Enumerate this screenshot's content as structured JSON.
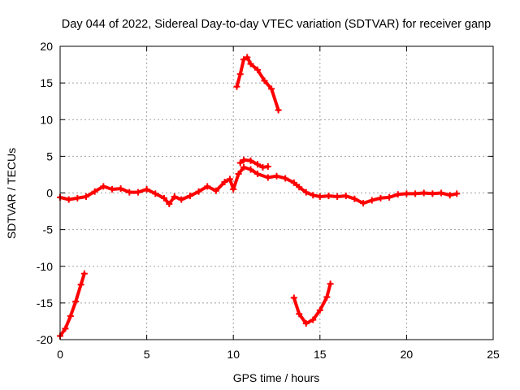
{
  "chart_data": {
    "type": "line",
    "title": "Day 044 of 2022, Sidereal Day-to-day VTEC variation (SDTVAR) for receiver ganp",
    "xlabel": "GPS time / hours",
    "ylabel": "SDTVAR / TECUs",
    "xlim": [
      0,
      25
    ],
    "ylim": [
      -20,
      20
    ],
    "xticks": [
      0,
      5,
      10,
      15,
      20,
      25
    ],
    "yticks": [
      -20,
      -15,
      -10,
      -5,
      0,
      5,
      10,
      15,
      20
    ],
    "grid": true,
    "marker": "plus",
    "color": "#ff0000",
    "series": [
      {
        "name": "main-track",
        "points": [
          [
            0,
            -0.6
          ],
          [
            0.5,
            -0.9
          ],
          [
            1.0,
            -0.7
          ],
          [
            1.5,
            -0.5
          ],
          [
            2.0,
            0.2
          ],
          [
            2.5,
            0.9
          ],
          [
            3.0,
            0.5
          ],
          [
            3.5,
            0.6
          ],
          [
            4.0,
            0.1
          ],
          [
            4.5,
            0.1
          ],
          [
            5.0,
            0.5
          ],
          [
            5.5,
            -0.1
          ],
          [
            6.0,
            -0.7
          ],
          [
            6.3,
            -1.5
          ],
          [
            6.6,
            -0.5
          ],
          [
            7.0,
            -0.9
          ],
          [
            7.5,
            -0.4
          ],
          [
            8.0,
            0.2
          ],
          [
            8.5,
            0.9
          ],
          [
            9.0,
            0.3
          ],
          [
            9.5,
            1.5
          ],
          [
            9.8,
            1.9
          ],
          [
            10.0,
            0.5
          ],
          [
            10.3,
            2.6
          ],
          [
            10.6,
            3.5
          ],
          [
            11.0,
            3.2
          ],
          [
            11.4,
            2.6
          ],
          [
            12.0,
            2.1
          ],
          [
            12.5,
            2.3
          ],
          [
            13.0,
            2.0
          ],
          [
            13.5,
            1.4
          ],
          [
            13.8,
            0.8
          ],
          [
            14.2,
            0.1
          ],
          [
            14.6,
            -0.3
          ],
          [
            15.0,
            -0.5
          ],
          [
            15.5,
            -0.4
          ],
          [
            16.0,
            -0.5
          ],
          [
            16.5,
            -0.4
          ],
          [
            17.0,
            -0.8
          ],
          [
            17.5,
            -1.4
          ],
          [
            18.0,
            -1.0
          ],
          [
            18.5,
            -0.7
          ],
          [
            19.0,
            -0.6
          ],
          [
            19.5,
            -0.2
          ],
          [
            20.0,
            -0.1
          ],
          [
            20.5,
            -0.1
          ],
          [
            21.0,
            0.0
          ],
          [
            21.5,
            -0.1
          ],
          [
            22.0,
            0.0
          ],
          [
            22.5,
            -0.3
          ],
          [
            22.9,
            -0.1
          ]
        ]
      },
      {
        "name": "upper-branch",
        "points": [
          [
            10.4,
            4.1
          ],
          [
            10.6,
            4.5
          ],
          [
            11.0,
            4.4
          ],
          [
            11.4,
            3.9
          ],
          [
            11.7,
            3.5
          ],
          [
            12.0,
            3.6
          ]
        ]
      },
      {
        "name": "spike-high",
        "points": [
          [
            10.2,
            14.5
          ],
          [
            10.4,
            16.2
          ],
          [
            10.6,
            18.2
          ],
          [
            10.8,
            18.5
          ],
          [
            11.0,
            17.6
          ],
          [
            11.4,
            16.8
          ],
          [
            11.8,
            15.3
          ],
          [
            12.2,
            14.2
          ],
          [
            12.6,
            11.3
          ]
        ]
      },
      {
        "name": "dip-low",
        "points": [
          [
            13.5,
            -14.3
          ],
          [
            13.8,
            -16.5
          ],
          [
            14.2,
            -17.8
          ],
          [
            14.6,
            -17.3
          ],
          [
            15.0,
            -16.0
          ],
          [
            15.4,
            -14.2
          ],
          [
            15.6,
            -12.4
          ]
        ]
      },
      {
        "name": "start-rise",
        "points": [
          [
            0.0,
            -19.5
          ],
          [
            0.3,
            -18.5
          ],
          [
            0.6,
            -16.8
          ],
          [
            0.9,
            -14.8
          ],
          [
            1.2,
            -12.5
          ],
          [
            1.4,
            -11.0
          ]
        ]
      }
    ]
  }
}
